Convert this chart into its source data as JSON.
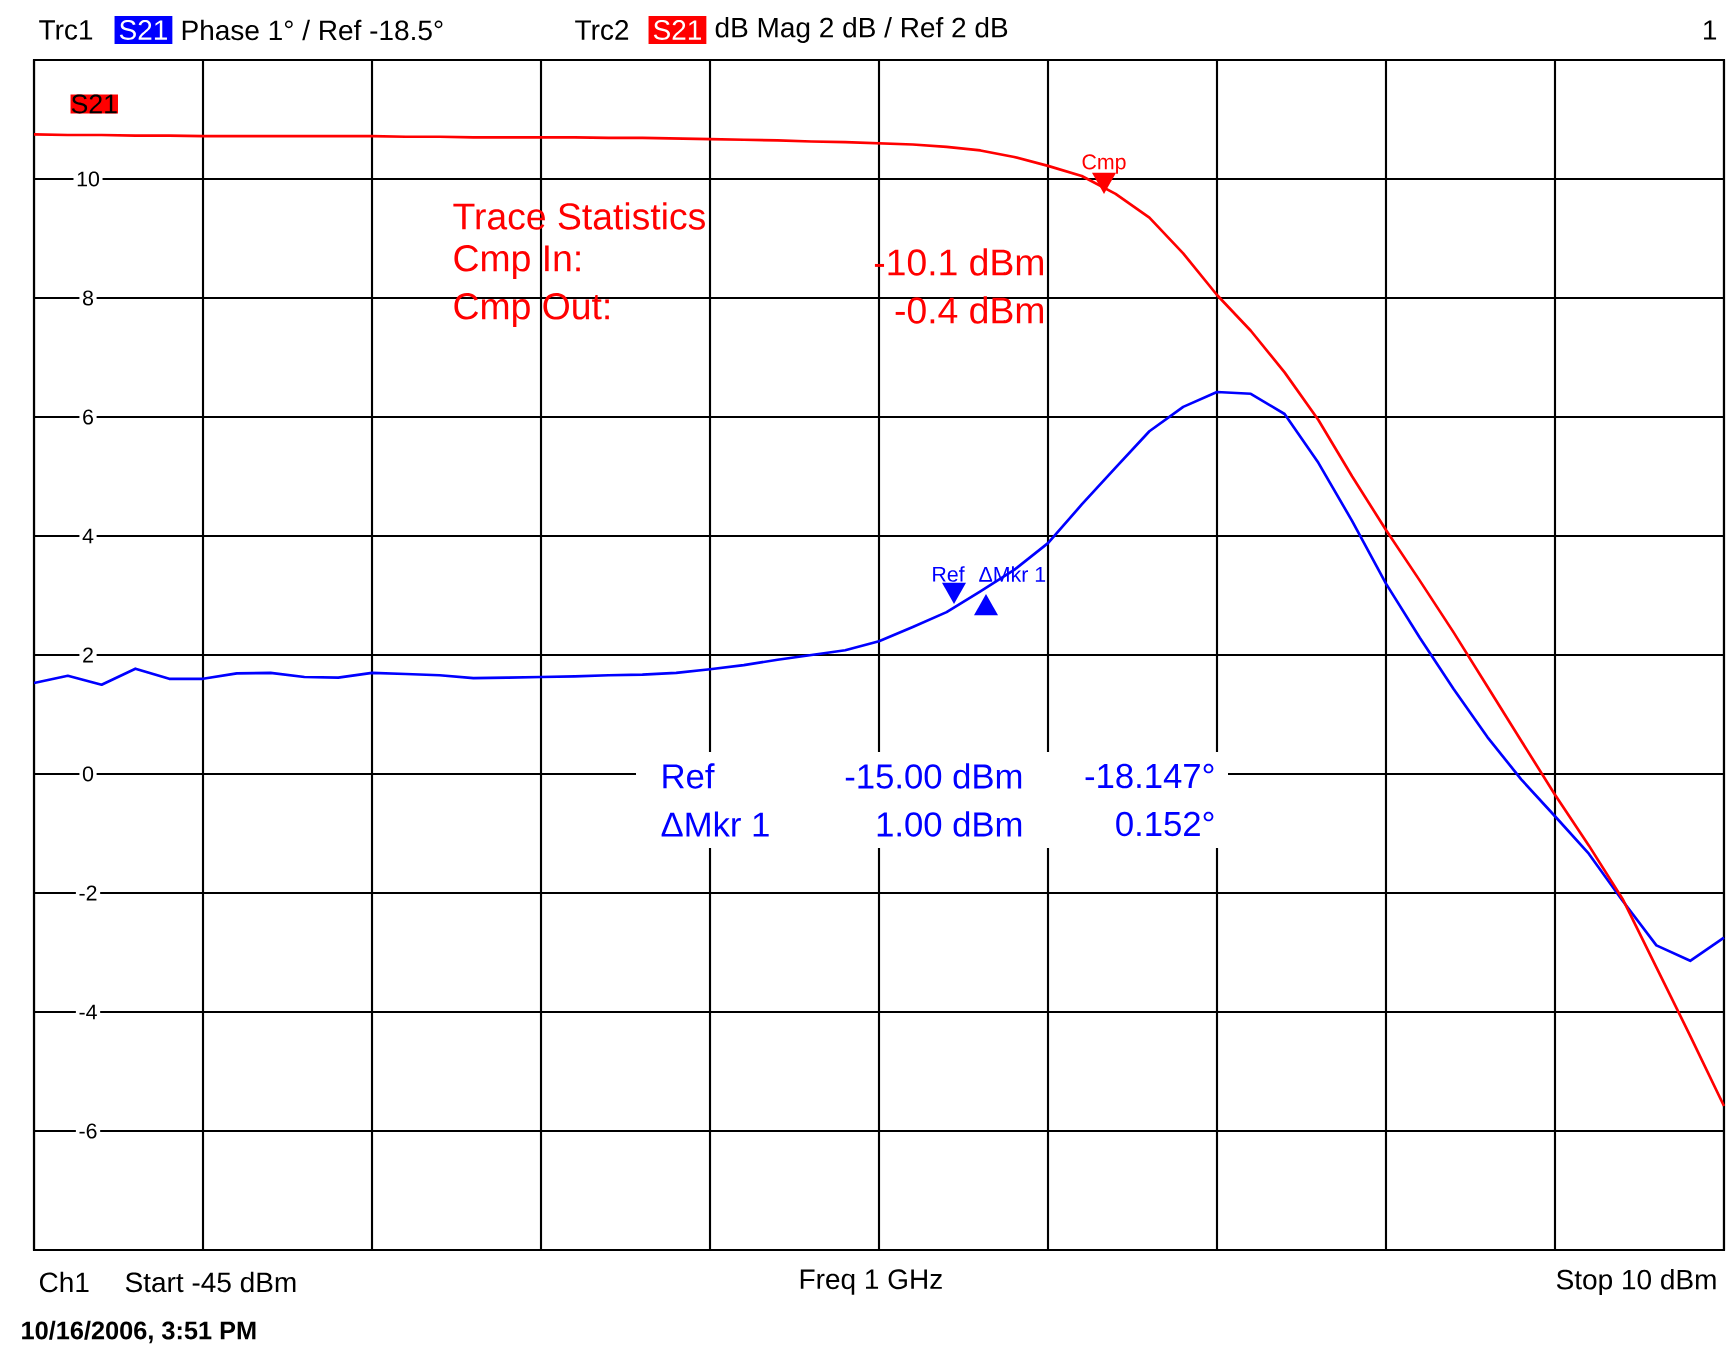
{
  "chart_data": {
    "type": "line",
    "categories": [
      null,
      null,
      null,
      null,
      null,
      null,
      null,
      null,
      null,
      null,
      null,
      null,
      null,
      null,
      null,
      null,
      null,
      null,
      null,
      null,
      null,
      null,
      null,
      null,
      null,
      null,
      null,
      null,
      null,
      null,
      null,
      null,
      null,
      null,
      null,
      null,
      null,
      null,
      null,
      null,
      null,
      null,
      null,
      null,
      null,
      null,
      null,
      null,
      null,
      null,
      null
    ],
    "ylim": [
      -8,
      12
    ],
    "yticks": [
      -6,
      -4,
      -2,
      0,
      2,
      4,
      6,
      8,
      10
    ],
    "grid": true,
    "legend": "top",
    "series": [
      {
        "name": "S21",
        "color": "#0000ff",
        "values": [
          1.53,
          1.65,
          1.5,
          1.77,
          1.6,
          1.6,
          1.69,
          1.7,
          1.63,
          1.62,
          1.7,
          1.68,
          1.66,
          1.61,
          1.62,
          1.63,
          1.64,
          1.66,
          1.67,
          1.7,
          1.76,
          1.83,
          1.92,
          2.0,
          2.08,
          2.23,
          2.47,
          2.72,
          3.07,
          3.43,
          3.88,
          4.53,
          5.15,
          5.76,
          6.17,
          6.42,
          6.39,
          6.05,
          5.23,
          4.25,
          3.2,
          2.29,
          1.43,
          0.62,
          -0.09,
          -0.71,
          -1.34,
          -2.13,
          -2.88,
          -3.14,
          -2.75
        ]
      },
      {
        "name": "S21",
        "color": "#ff0000",
        "values": [
          10.75,
          10.74,
          10.74,
          10.73,
          10.73,
          10.72,
          10.72,
          10.72,
          10.72,
          10.72,
          10.72,
          10.71,
          10.71,
          10.7,
          10.7,
          10.7,
          10.7,
          10.69,
          10.69,
          10.68,
          10.67,
          10.66,
          10.65,
          10.63,
          10.62,
          10.6,
          10.58,
          10.54,
          10.48,
          10.37,
          10.22,
          10.05,
          9.75,
          9.35,
          8.75,
          8.05,
          7.45,
          6.75,
          5.95,
          5.0,
          4.1,
          3.25,
          2.38,
          1.47,
          0.56,
          -0.35,
          -1.2,
          -2.1,
          -3.25,
          -4.4,
          -5.58
        ]
      }
    ],
    "annotations": [
      "Trc1",
      "Phase  1° /  Ref -18.5°",
      "Trc2",
      "dB Mag  2 dB /  Ref 2 dB",
      "1",
      "S21",
      "Trace Statistics",
      "Cmp In:",
      "-10.1 dBm",
      "Cmp Out:",
      "-0.4 dBm",
      "Ref",
      "-15.00 dBm",
      "-18.147°",
      "ΔMkr 1",
      "1.00 dBm",
      "0.152°",
      "Cmp",
      "Ref",
      "ΔMkr 1",
      "Ch1",
      "Start  -45 dBm",
      "Freq  1 GHz",
      "Stop  10 dBm",
      "10/16/2006, 3:51 PM"
    ]
  }
}
